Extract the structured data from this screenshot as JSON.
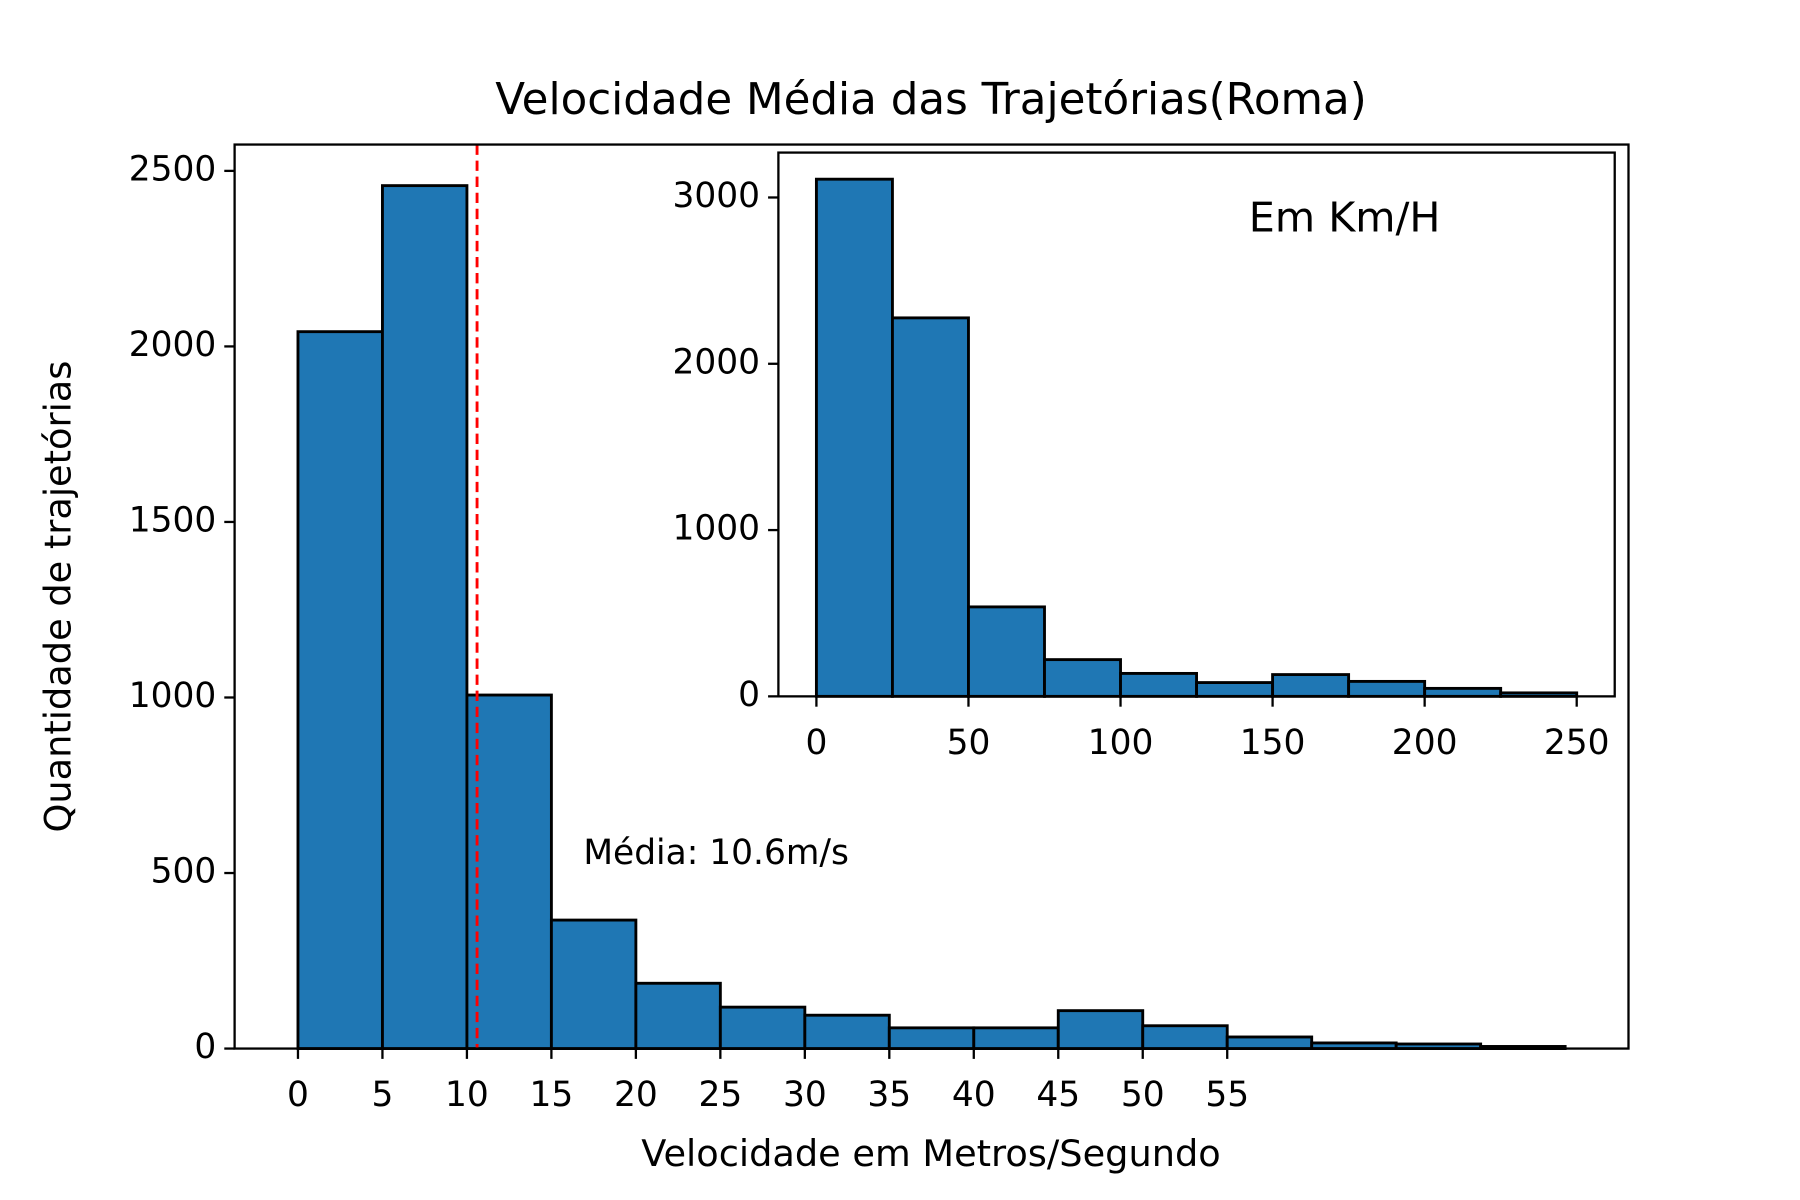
{
  "chart_data": [
    {
      "type": "histogram",
      "title": "Velocidade Média das Trajetórias(Roma)",
      "xlabel": "Velocidade em Metros/Segundo",
      "ylabel": "Quantidade de trajetórias",
      "bins": [
        0,
        5,
        10,
        15,
        20,
        25,
        30,
        35,
        40,
        45,
        50,
        55,
        60,
        65,
        70,
        75
      ],
      "counts": [
        2042,
        2458,
        1007,
        366,
        186,
        118,
        95,
        59,
        59,
        108,
        65,
        33,
        16,
        13,
        6
      ],
      "color": "#1f77b4",
      "xlim": [
        -3.75,
        78.75
      ],
      "ylim": [
        0,
        2575
      ],
      "xticks": [
        0,
        5,
        10,
        15,
        20,
        25,
        30,
        35,
        40,
        45,
        50,
        55
      ],
      "yticks": [
        0,
        500,
        1000,
        1500,
        2000,
        2500
      ],
      "mean": 10.6,
      "mean_color": "#ff0000",
      "annotation": "Média: 10.6m/s"
    },
    {
      "type": "histogram",
      "annotation": "Em Km/H",
      "bins": [
        0,
        25,
        50,
        75,
        100,
        125,
        150,
        175,
        200,
        225,
        250
      ],
      "counts": [
        3110,
        2276,
        538,
        221,
        138,
        83,
        131,
        90,
        48,
        21
      ],
      "color": "#1f77b4",
      "xlim": [
        -12.5,
        262.5
      ],
      "ylim": [
        0,
        3270
      ],
      "xticks": [
        0,
        50,
        100,
        150,
        200,
        250
      ],
      "yticks": [
        0,
        1000,
        2000,
        3000
      ]
    }
  ]
}
